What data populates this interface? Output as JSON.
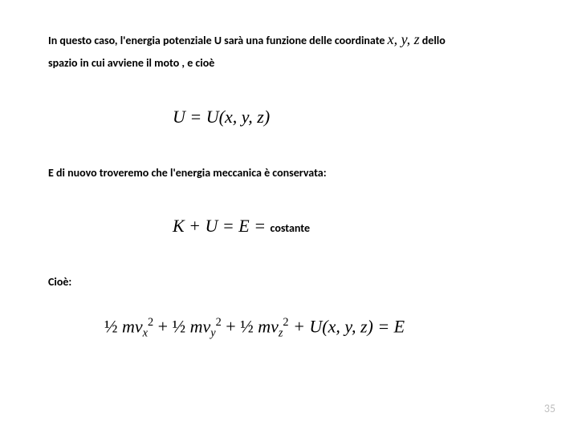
{
  "para1_a": "In questo caso, l'energia potenziale U sarà una funzione delle coordinate ",
  "para1_vars": "x, y,  z",
  "para1_b": "  dello",
  "para1_c": "spazio in cui avviene il moto , e cioè",
  "eq1_a": "U = U(x, y, z)",
  "para2": "E di nuovo troveremo che l'energia meccanica è conservata:",
  "eq2_a": "K + U = E = ",
  "eq2_b": "costante",
  "para3": "Cioè:",
  "eq3": {
    "half": "½ ",
    "mv": "mv",
    "sub_x": "x",
    "sub_y": "y",
    "sub_z": "z",
    "sq": "2",
    "plus": " + ",
    "tail": "  + U(x, y, z) = E"
  },
  "pagenum": "35",
  "colors": {
    "text": "#000000",
    "background": "#ffffff",
    "pagenum": "#bfbfbf"
  },
  "typography": {
    "body_font": "Calibri",
    "math_font": "Times New Roman",
    "body_size_pt": 14,
    "math_size_pt": 22,
    "inline_var_size_pt": 18
  }
}
